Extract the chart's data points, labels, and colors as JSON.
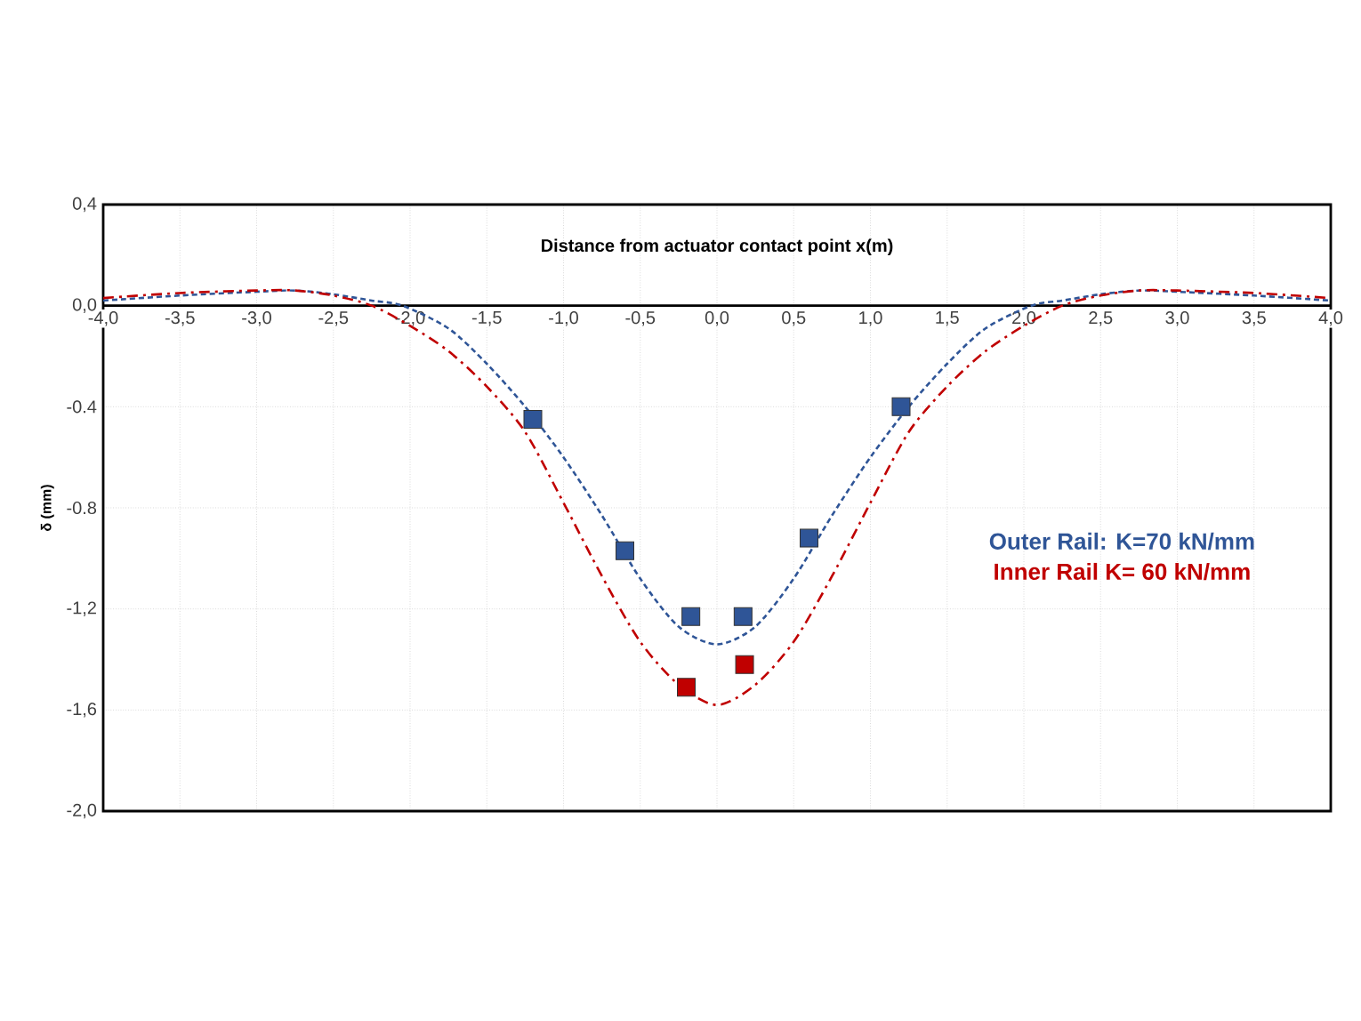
{
  "chart_data": {
    "type": "line",
    "xlabel": "Distance from actuator contact point x(m)",
    "ylabel": "δ (mm)",
    "xlim": [
      -4,
      4
    ],
    "ylim": [
      -2.0,
      0.4
    ],
    "xticks": [
      {
        "value": -4,
        "label": "-4,0"
      },
      {
        "value": -3.5,
        "label": "-3,5"
      },
      {
        "value": -3,
        "label": "-3,0"
      },
      {
        "value": -2.5,
        "label": "-2,5"
      },
      {
        "value": -2,
        "label": "-2,0"
      },
      {
        "value": -1.5,
        "label": "-1,5"
      },
      {
        "value": -1,
        "label": "-1,0"
      },
      {
        "value": -0.5,
        "label": "-0,5"
      },
      {
        "value": 0,
        "label": "0,0"
      },
      {
        "value": 0.5,
        "label": "0,5"
      },
      {
        "value": 1,
        "label": "1,0"
      },
      {
        "value": 1.5,
        "label": "1,5"
      },
      {
        "value": 2,
        "label": "2,0"
      },
      {
        "value": 2.5,
        "label": "2,5"
      },
      {
        "value": 3,
        "label": "3,0"
      },
      {
        "value": 3.5,
        "label": "3,5"
      },
      {
        "value": 4,
        "label": "4,0"
      }
    ],
    "yticks": [
      {
        "value": 0.4,
        "label": "0,4"
      },
      {
        "value": 0,
        "label": "0,0"
      },
      {
        "value": -0.4,
        "label": "-0.4"
      },
      {
        "value": -0.8,
        "label": "-0.8"
      },
      {
        "value": -1.2,
        "label": "-1,2"
      },
      {
        "value": -1.6,
        "label": "-1,6"
      },
      {
        "value": -2.0,
        "label": "-2,0"
      }
    ],
    "grid": true,
    "legend": "right",
    "series": [
      {
        "name": "Outer Rail: K=70 kN/mm",
        "color": "#2f5597",
        "line_style": "dashed",
        "marker": "none",
        "x": [
          -4,
          -3.5,
          -3,
          -2.75,
          -2.5,
          -2.25,
          -2.05,
          -1.75,
          -1.5,
          -1.25,
          -1,
          -0.75,
          -0.5,
          -0.25,
          0,
          0.25,
          0.5,
          0.75,
          1,
          1.25,
          1.5,
          1.75,
          2.05,
          2.25,
          2.5,
          2.75,
          3,
          3.5,
          4
        ],
        "values": [
          0.02,
          0.04,
          0.055,
          0.06,
          0.045,
          0.02,
          0,
          -0.09,
          -0.23,
          -0.4,
          -0.6,
          -0.83,
          -1.08,
          -1.27,
          -1.34,
          -1.27,
          -1.08,
          -0.83,
          -0.6,
          -0.4,
          -0.23,
          -0.09,
          0,
          0.02,
          0.045,
          0.06,
          0.055,
          0.04,
          0.02
        ]
      },
      {
        "name": "Inner Rail K= 60 kN/mm",
        "color": "#c00000",
        "line_style": "dashdot",
        "marker": "none",
        "x": [
          -4,
          -3.5,
          -3,
          -2.75,
          -2.5,
          -2.25,
          -2,
          -1.75,
          -1.5,
          -1.25,
          -1,
          -0.75,
          -0.5,
          -0.25,
          0,
          0.25,
          0.5,
          0.75,
          1,
          1.25,
          1.5,
          1.75,
          2,
          2.25,
          2.5,
          2.75,
          3,
          3.5,
          4
        ],
        "values": [
          0.03,
          0.05,
          0.06,
          0.06,
          0.04,
          0,
          -0.08,
          -0.18,
          -0.32,
          -0.5,
          -0.78,
          -1.07,
          -1.33,
          -1.5,
          -1.58,
          -1.5,
          -1.33,
          -1.07,
          -0.78,
          -0.5,
          -0.32,
          -0.18,
          -0.08,
          0,
          0.04,
          0.06,
          0.06,
          0.05,
          0.03
        ]
      },
      {
        "type": "scatter",
        "color": "#2f5597",
        "marker": "square",
        "x": [
          -1.2,
          -0.6,
          -0.17,
          0.17,
          0.6,
          1.2
        ],
        "values": [
          -0.45,
          -0.97,
          -1.23,
          -1.23,
          -0.92,
          -0.4
        ]
      },
      {
        "type": "scatter",
        "color": "#c00000",
        "marker": "square",
        "x": [
          -0.2,
          0.18
        ],
        "values": [
          -1.51,
          -1.42
        ]
      }
    ]
  }
}
